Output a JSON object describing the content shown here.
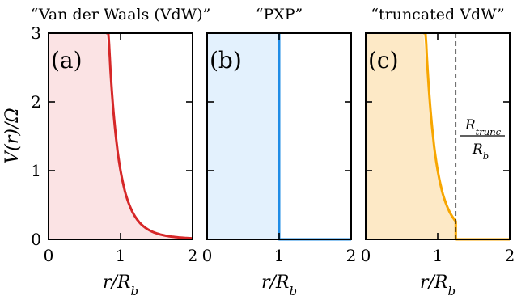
{
  "chart_data": [
    {
      "type": "line",
      "panel_label": "(a)",
      "title": "“Van der Waals (VdW)”",
      "xlabel": "r/R",
      "xlabel_sub": "b",
      "ylabel": "V(r)/Ω",
      "xlim": [
        0,
        2
      ],
      "ylim": [
        0,
        3
      ],
      "x_ticks": [
        "0",
        "1",
        "2"
      ],
      "y_ticks": [
        "0",
        "1",
        "2",
        "3"
      ],
      "line_color": "#d62728",
      "fill_color": "#fbe3e4",
      "potential": "V = (R_b / r)^6",
      "x": [
        0.8,
        0.9,
        1.0,
        1.1,
        1.2,
        1.3,
        1.4,
        1.5,
        1.6,
        1.7,
        1.8,
        1.9,
        2.0
      ],
      "y": [
        3.0,
        1.88,
        1.0,
        0.56,
        0.33,
        0.21,
        0.13,
        0.088,
        0.06,
        0.041,
        0.029,
        0.021,
        0.016
      ]
    },
    {
      "type": "line",
      "panel_label": "(b)",
      "title": "“PXP”",
      "xlabel": "r/R",
      "xlabel_sub": "b",
      "xlim": [
        0,
        2
      ],
      "ylim": [
        0,
        3
      ],
      "x_ticks": [
        "0",
        "1",
        "2"
      ],
      "line_color": "#1f8ce6",
      "fill_color": "#e3f1fd",
      "potential": "V = ∞ for r < R_b, 0 otherwise",
      "x": [
        1.0,
        1.0,
        2.0
      ],
      "y": [
        3.0,
        0.0,
        0.0
      ]
    },
    {
      "type": "line",
      "panel_label": "(c)",
      "title": "“truncated VdW”",
      "xlabel": "r/R",
      "xlabel_sub": "b",
      "xlim": [
        0,
        2
      ],
      "ylim": [
        0,
        3
      ],
      "x_ticks": [
        "0",
        "1",
        "2"
      ],
      "line_color": "#f7a600",
      "fill_color": "#fde9c6",
      "potential": "V = (R_b / r)^6 for r < R_trunc, 0 otherwise",
      "truncation_x": 1.25,
      "annotation_numerator": "R",
      "annotation_numerator_sub": "trunc",
      "annotation_denominator": "R",
      "annotation_denominator_sub": "b",
      "x": [
        0.8,
        0.9,
        1.0,
        1.1,
        1.2,
        1.25,
        1.25,
        2.0
      ],
      "y": [
        3.0,
        1.88,
        1.0,
        0.56,
        0.33,
        0.26,
        0.0,
        0.0
      ]
    }
  ]
}
